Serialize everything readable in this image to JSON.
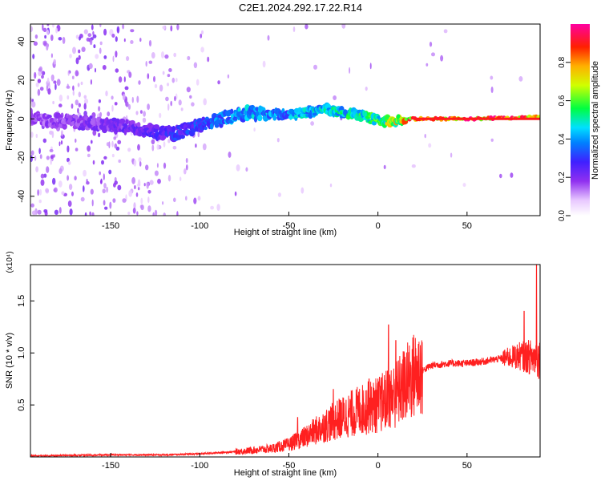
{
  "title": "C2E1.2024.292.17.22.R14",
  "colors": {
    "background": "#ffffff",
    "snr_line": "#ff2020",
    "axis": "#000000"
  },
  "chart_data": [
    {
      "type": "heatmap",
      "xlabel": "Height of straight line (km)",
      "ylabel": "Frequency (Hz)",
      "xlim": [
        -195,
        91
      ],
      "ylim": [
        -50,
        49
      ],
      "x_ticks": [
        -150,
        -100,
        -50,
        0,
        50
      ],
      "x_tick_labels": [
        "-150",
        "-100",
        "-50",
        "0",
        "50"
      ],
      "y_ticks": [
        -40,
        -20,
        0,
        20,
        40
      ],
      "y_tick_labels": [
        "-40",
        "-20",
        "0",
        "20",
        "40"
      ],
      "colorbar": {
        "label": "Normalized spectral amplitude",
        "range": [
          0,
          1
        ],
        "ticks": [
          0.0,
          0.2,
          0.4,
          0.6,
          0.8
        ],
        "tick_labels": [
          "0.0",
          "0.2",
          "0.4",
          "0.6",
          "0.8"
        ],
        "colormap": "rainbow (white-violet-blue-cyan-green-yellow-red-magenta)"
      },
      "ridge_frequency_hz": [
        [
          -195,
          0
        ],
        [
          -150,
          -3
        ],
        [
          -130,
          -6
        ],
        [
          -115,
          -8
        ],
        [
          -100,
          -3
        ],
        [
          -75,
          3
        ],
        [
          -50,
          2
        ],
        [
          -30,
          5
        ],
        [
          -20,
          3
        ],
        [
          -10,
          2
        ],
        [
          0,
          -1
        ],
        [
          10,
          -1
        ],
        [
          20,
          0
        ],
        [
          50,
          0
        ],
        [
          91,
          1
        ]
      ],
      "ridge_peak_amplitude": [
        [
          -195,
          0.18
        ],
        [
          -150,
          0.22
        ],
        [
          -120,
          0.28
        ],
        [
          -100,
          0.35
        ],
        [
          -75,
          0.45
        ],
        [
          -50,
          0.45
        ],
        [
          -30,
          0.5
        ],
        [
          -10,
          0.55
        ],
        [
          0,
          0.6
        ],
        [
          20,
          0.9
        ],
        [
          50,
          0.95
        ],
        [
          91,
          0.9
        ]
      ],
      "grid": false
    },
    {
      "type": "line",
      "xlabel": "Height of straight line (km)",
      "ylabel": "SNR (10 * v/v)",
      "y_multiplier": "(x10⁴)",
      "xlim": [
        -195,
        91
      ],
      "ylim": [
        0,
        1.85
      ],
      "x_ticks": [
        -150,
        -100,
        -50,
        0,
        50
      ],
      "x_tick_labels": [
        "-150",
        "-100",
        "-50",
        "0",
        "50"
      ],
      "y_ticks": [
        0.5,
        1.0,
        1.5
      ],
      "y_tick_labels": [
        "0.5",
        "1.0",
        "1.5"
      ],
      "series": [
        {
          "color": "#ff2020",
          "trend": [
            [
              -195,
              0.01
            ],
            [
              -150,
              0.02
            ],
            [
              -120,
              0.02
            ],
            [
              -100,
              0.03
            ],
            [
              -80,
              0.05
            ],
            [
              -60,
              0.08
            ],
            [
              -50,
              0.12
            ],
            [
              -40,
              0.2
            ],
            [
              -30,
              0.3
            ],
            [
              -20,
              0.38
            ],
            [
              -10,
              0.45
            ],
            [
              0,
              0.5
            ],
            [
              10,
              0.6
            ],
            [
              20,
              0.78
            ],
            [
              30,
              0.88
            ],
            [
              40,
              0.9
            ],
            [
              50,
              0.9
            ],
            [
              60,
              0.92
            ],
            [
              70,
              0.95
            ],
            [
              80,
              0.97
            ],
            [
              91,
              0.95
            ]
          ],
          "spikes": [
            [
              -45,
              0.38
            ],
            [
              -25,
              0.65
            ],
            [
              -5,
              0.75
            ],
            [
              6,
              1.27
            ],
            [
              10,
              1.12
            ],
            [
              82,
              1.4
            ],
            [
              89,
              1.85
            ]
          ]
        }
      ],
      "grid": false
    }
  ]
}
